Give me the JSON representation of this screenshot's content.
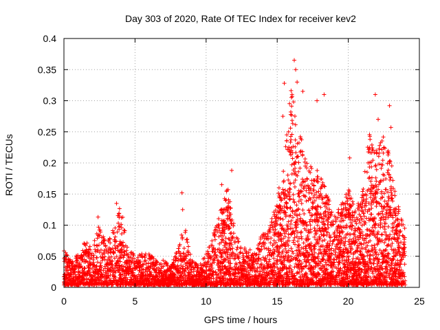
{
  "chart_data": {
    "type": "scatter",
    "title": "Day 303 of 2020, Rate Of TEC Index for receiver kev2",
    "xlabel": "GPS time / hours",
    "ylabel": "ROTI / TECUs",
    "xlim": [
      0,
      25
    ],
    "ylim": [
      0,
      0.4
    ],
    "xticks": [
      0,
      5,
      10,
      15,
      20,
      25
    ],
    "xtick_labels": [
      "0",
      "5",
      "10",
      "15",
      "20",
      "25"
    ],
    "yticks": [
      0,
      0.05,
      0.1,
      0.15,
      0.2,
      0.25,
      0.3,
      0.35,
      0.4
    ],
    "ytick_labels": [
      "0",
      "0.05",
      "0.1",
      "0.15",
      "0.2",
      "0.25",
      "0.3",
      "0.35",
      "0.4"
    ],
    "grid": true,
    "marker": "+",
    "marker_color": "#ff0000",
    "series": [
      {
        "name": "ROTI",
        "envelope": {
          "x": [
            0,
            0.5,
            1,
            1.5,
            2,
            2.5,
            3,
            3.5,
            4,
            4.5,
            5,
            5.5,
            6,
            6.5,
            7,
            7.5,
            8,
            8.5,
            9,
            9.5,
            10,
            10.5,
            11,
            11.5,
            12,
            12.5,
            13,
            13.5,
            14,
            14.5,
            15,
            15.5,
            16,
            16.5,
            17,
            17.5,
            18,
            18.5,
            19,
            19.5,
            20,
            20.5,
            21,
            21.5,
            22,
            22.5,
            23,
            23.5,
            24
          ],
          "y": [
            0.06,
            0.04,
            0.05,
            0.07,
            0.06,
            0.1,
            0.07,
            0.09,
            0.13,
            0.06,
            0.05,
            0.05,
            0.05,
            0.04,
            0.04,
            0.03,
            0.06,
            0.1,
            0.04,
            0.03,
            0.05,
            0.08,
            0.12,
            0.16,
            0.09,
            0.06,
            0.06,
            0.05,
            0.09,
            0.1,
            0.14,
            0.2,
            0.33,
            0.26,
            0.2,
            0.19,
            0.18,
            0.15,
            0.11,
            0.13,
            0.16,
            0.12,
            0.15,
            0.25,
            0.22,
            0.24,
            0.2,
            0.13,
            0.09
          ]
        },
        "outliers": [
          {
            "x": 16.2,
            "y": 0.365
          },
          {
            "x": 16.3,
            "y": 0.35
          },
          {
            "x": 16.4,
            "y": 0.33
          },
          {
            "x": 15.5,
            "y": 0.328
          },
          {
            "x": 16.8,
            "y": 0.315
          },
          {
            "x": 21.9,
            "y": 0.31
          },
          {
            "x": 18.3,
            "y": 0.31
          },
          {
            "x": 17.8,
            "y": 0.3
          },
          {
            "x": 22.9,
            "y": 0.292
          },
          {
            "x": 15.4,
            "y": 0.275
          },
          {
            "x": 22.1,
            "y": 0.27
          },
          {
            "x": 15.8,
            "y": 0.25
          },
          {
            "x": 23.0,
            "y": 0.257
          },
          {
            "x": 20.1,
            "y": 0.208
          },
          {
            "x": 11.8,
            "y": 0.188
          },
          {
            "x": 11.1,
            "y": 0.165
          },
          {
            "x": 8.3,
            "y": 0.152
          },
          {
            "x": 8.35,
            "y": 0.125
          },
          {
            "x": 3.7,
            "y": 0.135
          },
          {
            "x": 2.4,
            "y": 0.113
          }
        ]
      }
    ]
  }
}
